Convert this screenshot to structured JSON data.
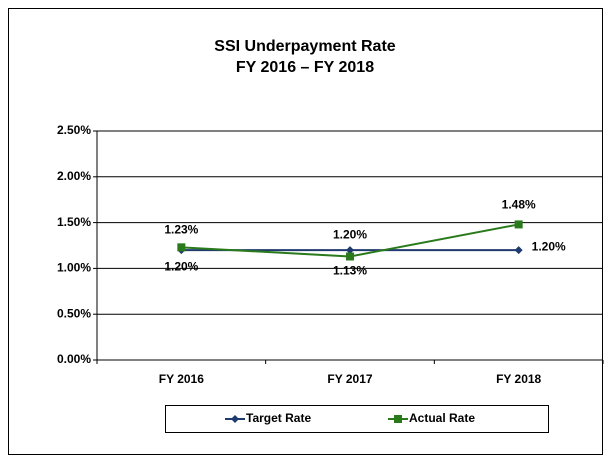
{
  "chart_data": {
    "type": "line",
    "title": "SSI Underpayment Rate",
    "subtitle": "FY 2016 – FY 2018",
    "categories": [
      "FY 2016",
      "FY 2017",
      "FY 2018"
    ],
    "series": [
      {
        "name": "Target Rate",
        "color": "#1f3a6e",
        "marker": "diamond",
        "values": [
          1.2,
          1.2,
          1.2
        ],
        "value_labels": [
          "1.20%",
          "1.20%",
          "1.20%"
        ]
      },
      {
        "name": "Actual Rate",
        "color": "#2a7a1c",
        "marker": "square",
        "values": [
          1.23,
          1.13,
          1.48
        ],
        "value_labels": [
          "1.23%",
          "1.13%",
          "1.48%"
        ]
      }
    ],
    "ylim": [
      0,
      2.5
    ],
    "yticks": [
      {
        "value": 0,
        "label": "0.00%"
      },
      {
        "value": 0.5,
        "label": "0.50%"
      },
      {
        "value": 1,
        "label": "1.00%"
      },
      {
        "value": 1.5,
        "label": "1.50%"
      },
      {
        "value": 2,
        "label": "2.00%"
      },
      {
        "value": 2.5,
        "label": "2.50%"
      }
    ],
    "grid": true,
    "legend": "bottom"
  }
}
